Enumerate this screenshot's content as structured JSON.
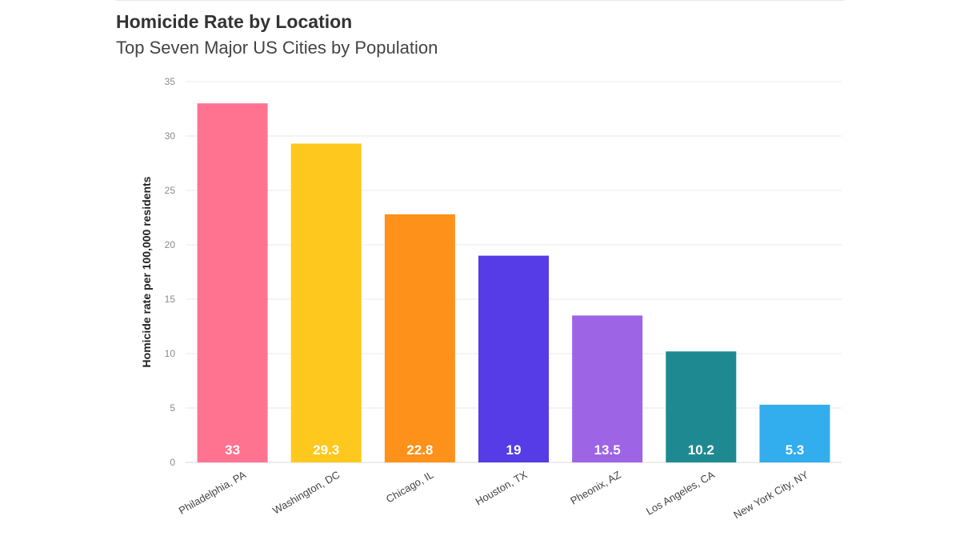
{
  "chart_data": {
    "type": "bar",
    "title": "Homicide Rate by Location",
    "subtitle": "Top Seven Major US Cities by Population",
    "xlabel": "",
    "ylabel": "Homicide rate per 100,000 residents",
    "ylim": [
      0,
      35
    ],
    "yticks": [
      0,
      5,
      10,
      15,
      20,
      25,
      30,
      35
    ],
    "grid": true,
    "categories": [
      "Philadelphia, PA",
      "Washington, DC",
      "Chicago, IL",
      "Houston, TX",
      "Pheonix, AZ",
      "Los Angeles, CA",
      "New York City, NY"
    ],
    "values": [
      33,
      29.3,
      22.8,
      19,
      13.5,
      10.2,
      5.3
    ],
    "data_labels": [
      "33",
      "29.3",
      "22.8",
      "19",
      "13.5",
      "10.2",
      "5.3"
    ],
    "colors": [
      "#ff7391",
      "#ffc81e",
      "#fd9119",
      "#563ce6",
      "#9d64e6",
      "#1f8991",
      "#32adee"
    ]
  }
}
